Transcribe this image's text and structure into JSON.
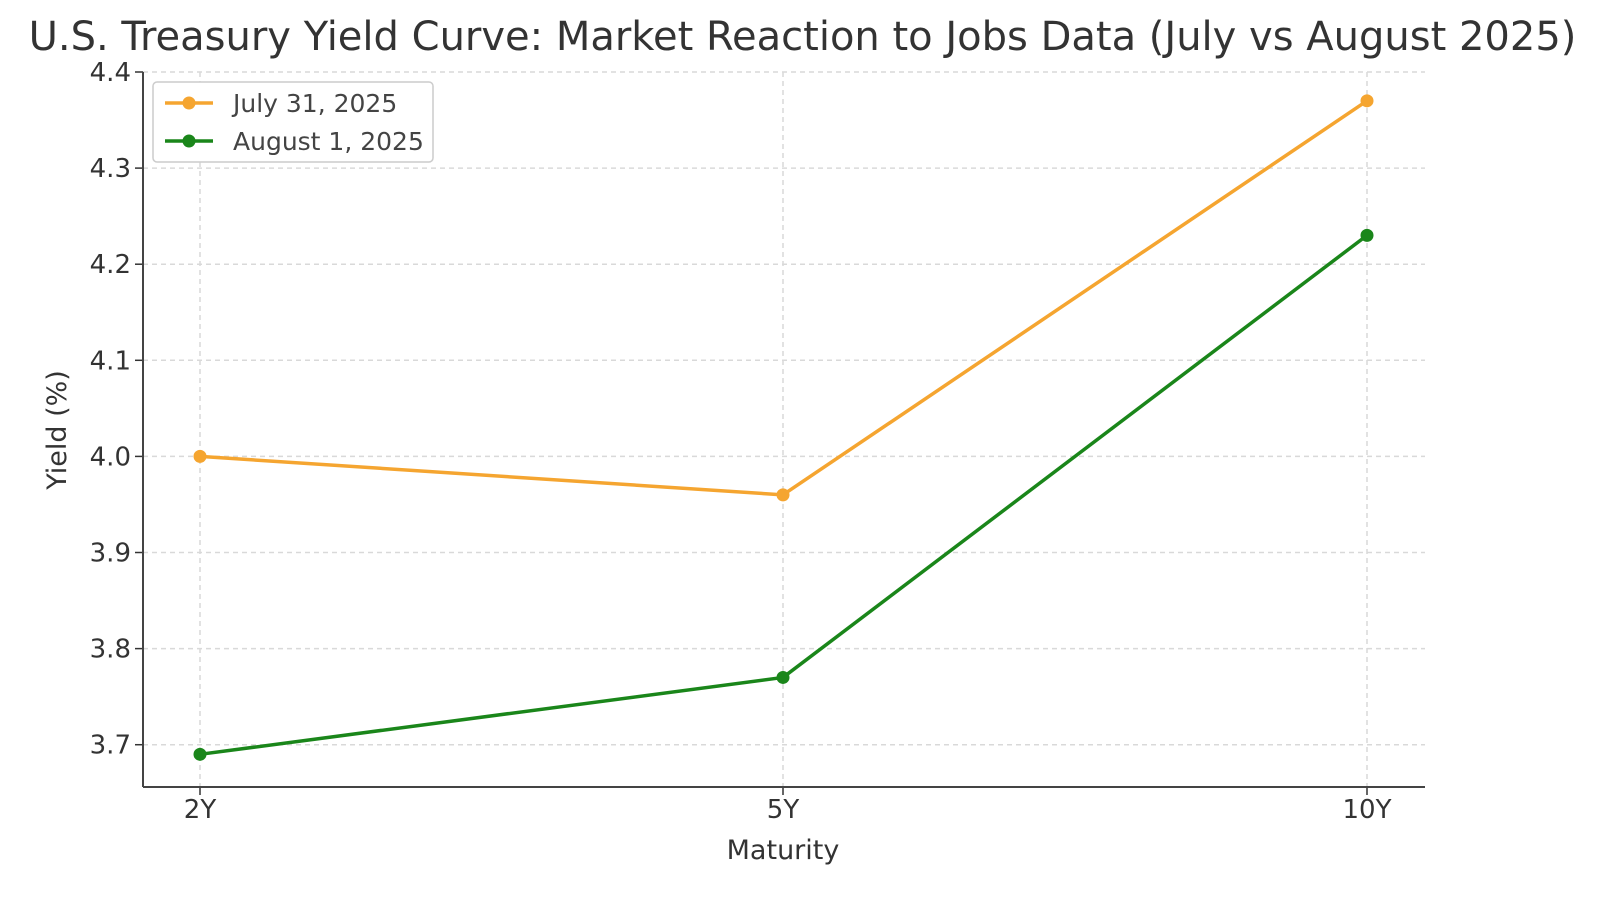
{
  "chart_data": {
    "type": "line",
    "title": "U.S. Treasury Yield Curve: Market Reaction to Jobs Data (July vs August 2025)",
    "xlabel": "Maturity",
    "ylabel": "Yield (%)",
    "categories": [
      "2Y",
      "5Y",
      "10Y"
    ],
    "ylim": [
      3.656,
      4.4
    ],
    "yticks": [
      "3.7",
      "3.8",
      "3.9",
      "4.0",
      "4.1",
      "4.2",
      "4.3",
      "4.4"
    ],
    "grid": true,
    "legend_position": "top-left",
    "series": [
      {
        "name": "July 31, 2025",
        "color": "#f5a530",
        "values": [
          4.0,
          3.96,
          4.37
        ]
      },
      {
        "name": "August 1, 2025",
        "color": "#1a861a",
        "values": [
          3.69,
          3.77,
          4.23
        ]
      }
    ]
  }
}
